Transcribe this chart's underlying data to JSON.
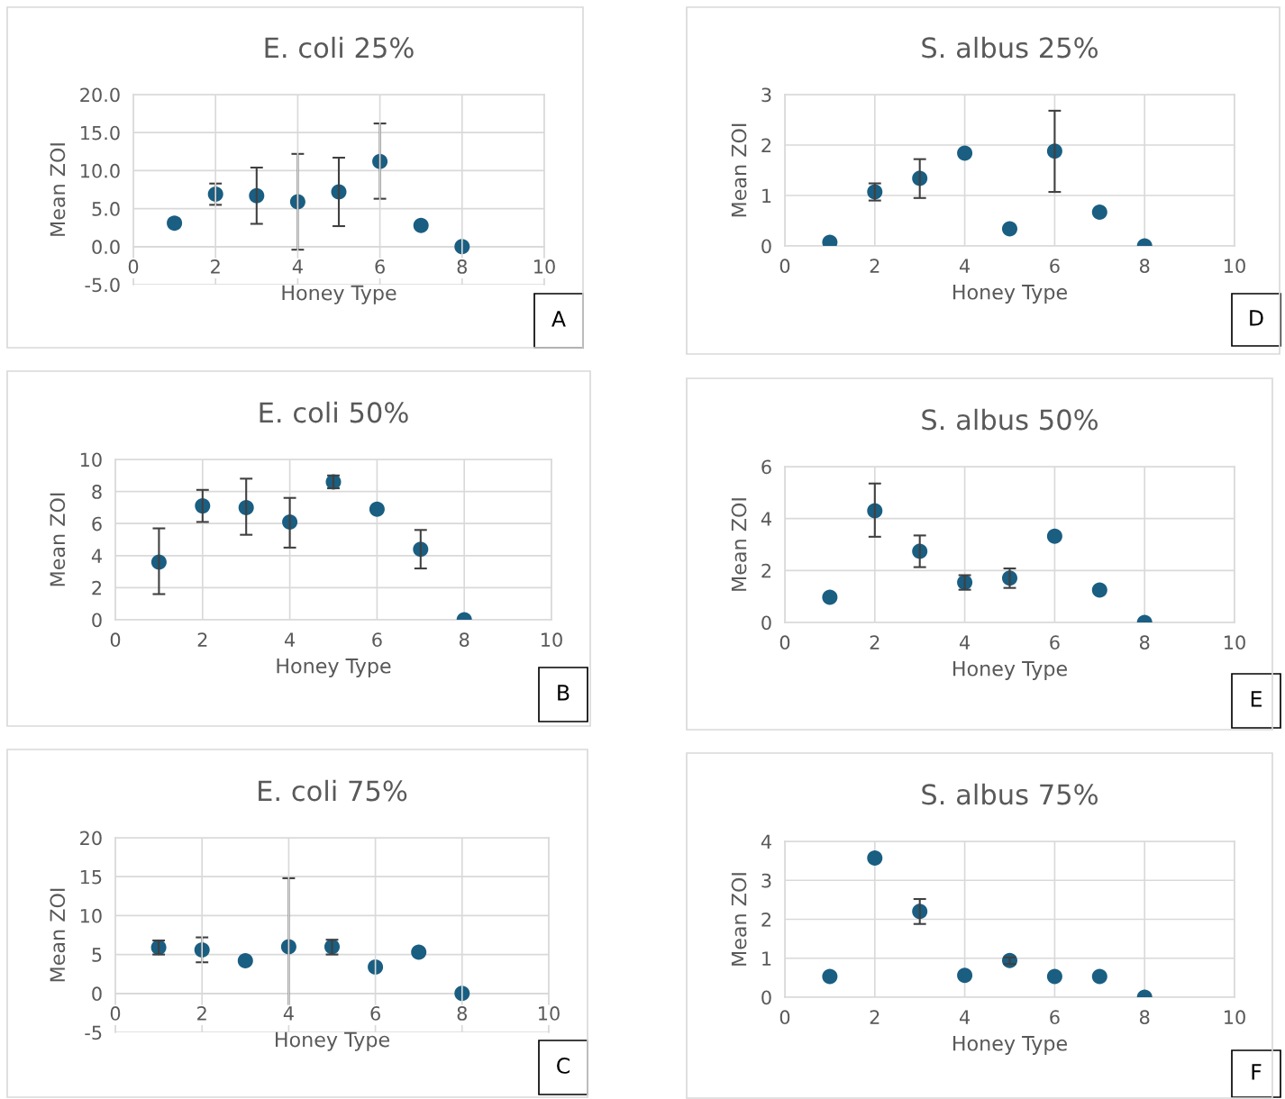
{
  "chart_data": [
    {
      "type": "scatter",
      "title": "E. coli 25%",
      "xlabel": "Honey Type",
      "ylabel": "Mean ZOI",
      "annotations": [
        "A"
      ],
      "x": [
        1,
        2,
        3,
        4,
        5,
        6,
        7,
        8
      ],
      "values": [
        3.1,
        6.9,
        6.7,
        5.9,
        7.2,
        11.2,
        2.8,
        0
      ],
      "errors": [
        null,
        [
          5.5,
          8.3
        ],
        [
          3.0,
          10.4
        ],
        [
          -0.4,
          12.2
        ],
        [
          2.7,
          11.7
        ],
        [
          6.3,
          16.2
        ],
        null,
        null
      ],
      "color": "#1a5e82",
      "marker": "circle",
      "grid": true,
      "xlim": [
        0,
        10
      ],
      "xticks": [
        0,
        2,
        4,
        6,
        8,
        10
      ],
      "ylim": [
        -5,
        20
      ],
      "yticks": [
        {
          "value": -5,
          "label": "-5.0"
        },
        {
          "value": 0,
          "label": "0.0"
        },
        {
          "value": 5,
          "label": "5.0"
        },
        {
          "value": 10,
          "label": "10.0"
        },
        {
          "value": 15,
          "label": "15.0"
        },
        {
          "value": 20,
          "label": "20.0"
        }
      ]
    },
    {
      "type": "scatter",
      "title": "S. albus 25%",
      "xlabel": "Honey Type",
      "ylabel": "Mean ZOI",
      "annotations": [
        "D"
      ],
      "x": [
        1,
        2,
        3,
        4,
        5,
        6,
        7,
        8
      ],
      "values": [
        0.07,
        1.07,
        1.34,
        1.84,
        0.34,
        1.88,
        0.67,
        0
      ],
      "errors": [
        null,
        [
          0.9,
          1.24
        ],
        [
          0.95,
          1.72
        ],
        null,
        null,
        [
          1.07,
          2.68
        ],
        null,
        null
      ],
      "color": "#1a5e82",
      "marker": "circle",
      "grid": true,
      "xlim": [
        0,
        10
      ],
      "xticks": [
        0,
        2,
        4,
        6,
        8,
        10
      ],
      "ylim": [
        0,
        3
      ],
      "yticks": [
        0,
        1,
        2,
        3
      ]
    },
    {
      "type": "scatter",
      "title": "E. coli 50%",
      "xlabel": "Honey Type",
      "ylabel": "Mean ZOI",
      "annotations": [
        "B"
      ],
      "x": [
        1,
        2,
        3,
        4,
        5,
        6,
        7,
        8
      ],
      "values": [
        3.6,
        7.1,
        7.0,
        6.1,
        8.6,
        6.9,
        4.4,
        0
      ],
      "errors": [
        [
          1.6,
          5.7
        ],
        [
          6.1,
          8.1
        ],
        [
          5.3,
          8.8
        ],
        [
          4.5,
          7.6
        ],
        [
          8.2,
          9.0
        ],
        null,
        [
          3.2,
          5.6
        ],
        null
      ],
      "color": "#1a5e82",
      "marker": "circle",
      "grid": true,
      "xlim": [
        0,
        10
      ],
      "xticks": [
        0,
        2,
        4,
        6,
        8,
        10
      ],
      "ylim": [
        0,
        10
      ],
      "yticks": [
        0,
        2,
        4,
        6,
        8,
        10
      ]
    },
    {
      "type": "scatter",
      "title": "S. albus 50%",
      "xlabel": "Honey Type",
      "ylabel": "Mean ZOI",
      "annotations": [
        "E"
      ],
      "x": [
        1,
        2,
        3,
        4,
        5,
        6,
        7,
        8
      ],
      "values": [
        0.97,
        4.3,
        2.74,
        1.54,
        1.71,
        3.32,
        1.25,
        0
      ],
      "errors": [
        null,
        [
          3.3,
          5.35
        ],
        [
          2.13,
          3.35
        ],
        [
          1.26,
          1.82
        ],
        [
          1.33,
          2.08
        ],
        null,
        null,
        null
      ],
      "color": "#1a5e82",
      "marker": "circle",
      "grid": true,
      "xlim": [
        0,
        10
      ],
      "xticks": [
        0,
        2,
        4,
        6,
        8,
        10
      ],
      "ylim": [
        0,
        6
      ],
      "yticks": [
        0,
        2,
        4,
        6
      ]
    },
    {
      "type": "scatter",
      "title": "E. coli 75%",
      "xlabel": "Honey Type",
      "ylabel": "Mean ZOI",
      "annotations": [
        "C"
      ],
      "x": [
        1,
        2,
        3,
        4,
        5,
        6,
        7,
        8
      ],
      "values": [
        5.9,
        5.6,
        4.2,
        6.0,
        6.0,
        3.4,
        5.3,
        0
      ],
      "errors": [
        [
          5.0,
          6.8
        ],
        [
          4.0,
          7.2
        ],
        null,
        [
          -2.8,
          14.8
        ],
        [
          5.0,
          6.9
        ],
        null,
        null,
        null
      ],
      "color": "#1a5e82",
      "marker": "circle",
      "grid": true,
      "xlim": [
        0,
        10
      ],
      "xticks": [
        0,
        2,
        4,
        6,
        8,
        10
      ],
      "ylim": [
        -5,
        20
      ],
      "yticks": [
        -5,
        0,
        5,
        10,
        15,
        20
      ]
    },
    {
      "type": "scatter",
      "title": "S. albus 75%",
      "xlabel": "Honey Type",
      "ylabel": "Mean ZOI",
      "annotations": [
        "F"
      ],
      "x": [
        1,
        2,
        3,
        4,
        5,
        6,
        7,
        8
      ],
      "values": [
        0.53,
        3.57,
        2.2,
        0.56,
        0.94,
        0.53,
        0.53,
        0
      ],
      "errors": [
        null,
        null,
        [
          1.88,
          2.52
        ],
        null,
        [
          0.85,
          1.02
        ],
        null,
        null,
        null
      ],
      "color": "#1a5e82",
      "marker": "circle",
      "grid": true,
      "xlim": [
        0,
        10
      ],
      "xticks": [
        0,
        2,
        4,
        6,
        8,
        10
      ],
      "ylim": [
        0,
        4
      ],
      "yticks": [
        0,
        1,
        2,
        3,
        4
      ]
    }
  ]
}
